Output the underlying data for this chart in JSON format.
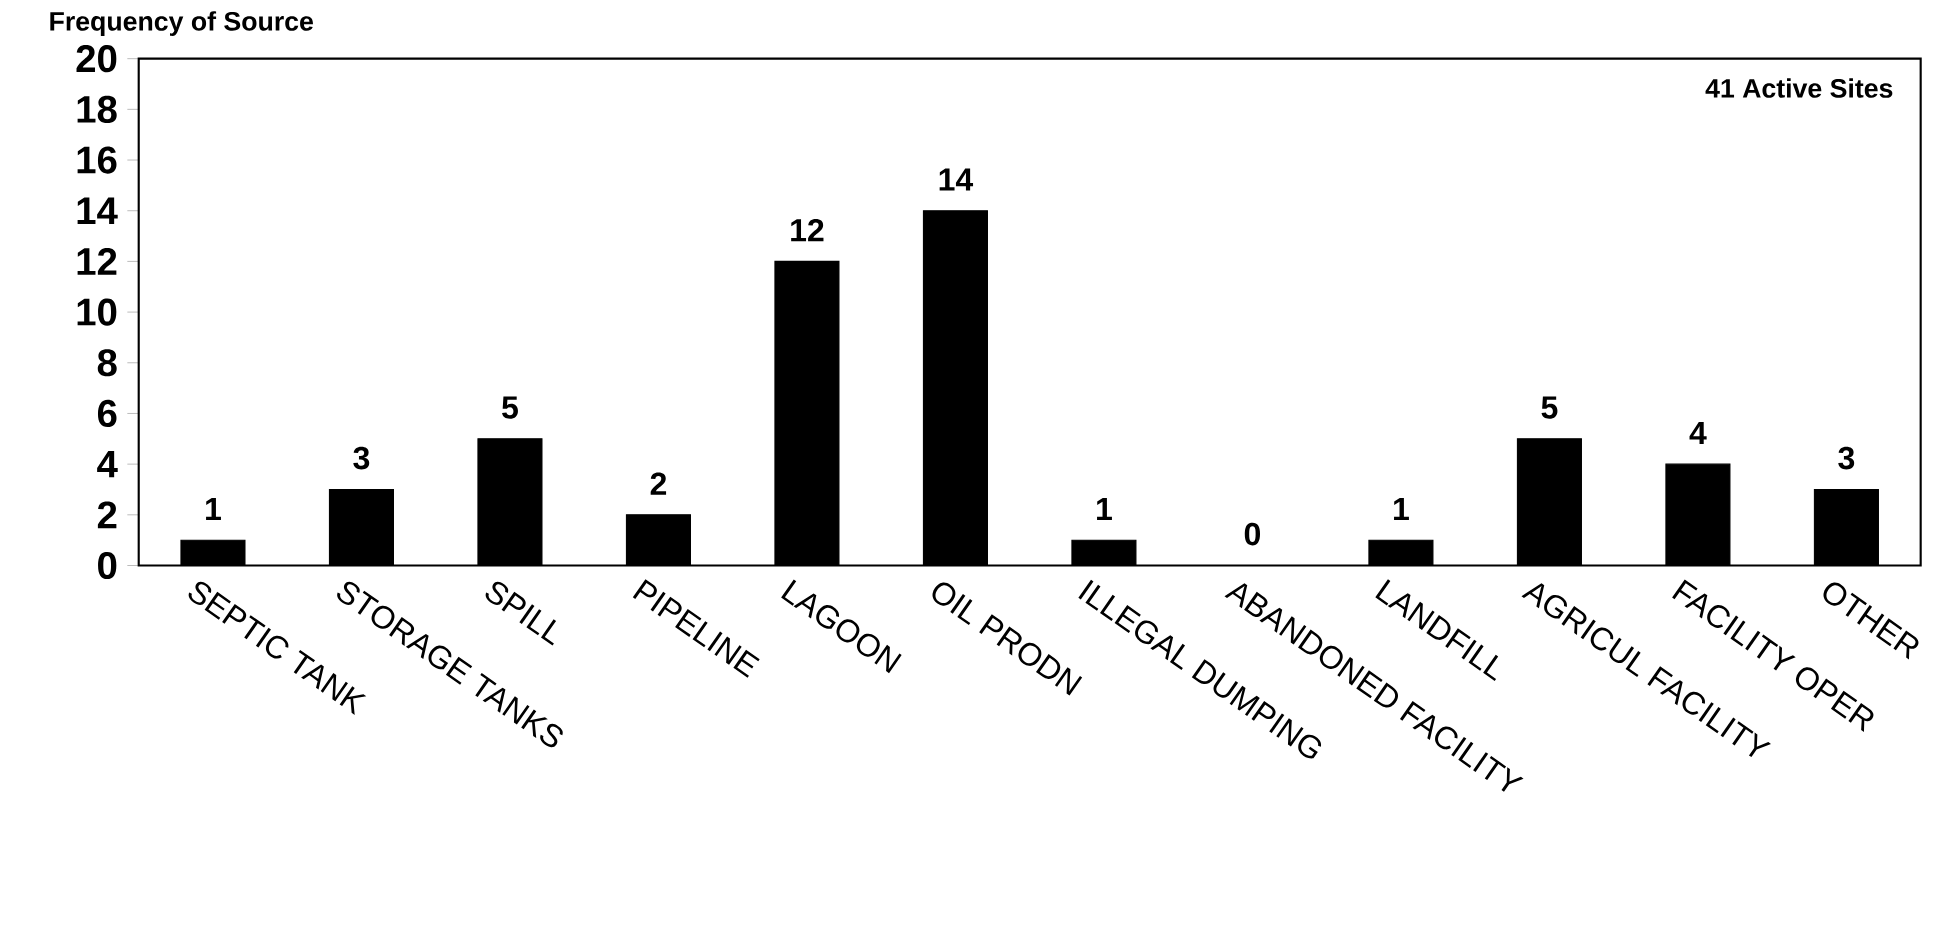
{
  "chart_data": {
    "type": "bar",
    "ylabel": "Frequency of Source",
    "categories": [
      "SEPTIC TANK",
      "STORAGE TANKS",
      "SPILL",
      "PIPELINE",
      "LAGOON",
      "OIL PRODN",
      "ILLEGAL DUMPING",
      "ABANDONED FACILITY",
      "LANDFILL",
      "AGRICUL FACILITY",
      "FACILITY OPER",
      "OTHER"
    ],
    "values": [
      1,
      3,
      5,
      2,
      12,
      14,
      1,
      0,
      1,
      5,
      4,
      3
    ],
    "color": "#000000",
    "ylim": [
      0,
      20
    ],
    "yticks": [
      0,
      2,
      4,
      6,
      8,
      10,
      12,
      14,
      16,
      18,
      20
    ],
    "data_labels": true,
    "annotations": [
      "41 Active Sites"
    ]
  }
}
